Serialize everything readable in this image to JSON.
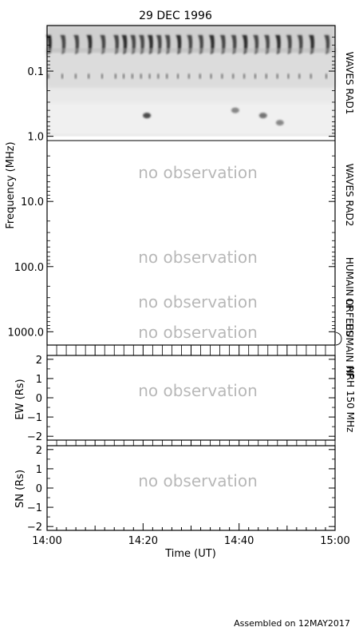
{
  "chart_data": {
    "type": "heatmap",
    "title": "29 DEC 1996",
    "footer": "Assembled on 12MAY2017",
    "xlabel": "Time (UT)",
    "xlim": [
      "14:00",
      "15:00"
    ],
    "x_ticks": [
      "14:00",
      "14:20",
      "14:40",
      "15:00"
    ],
    "panels": [
      {
        "id": "spectrogram",
        "ylabel": "Frequency (MHz)",
        "y_scale": "log",
        "y_reversed": true,
        "ylim": [
          0.02,
          1600
        ],
        "y_ticks": [
          {
            "value": 0.1,
            "label": "0.1"
          },
          {
            "value": 1.0,
            "label": "1.0"
          },
          {
            "value": 10.0,
            "label": "10.0"
          },
          {
            "value": 100.0,
            "label": "100.0"
          },
          {
            "value": 1000.0,
            "label": "1000.0"
          }
        ],
        "instruments": [
          {
            "name": "WAVES RAD1",
            "f_range": [
              0.02,
              1.0
            ],
            "status": "observed"
          },
          {
            "name": "WAVES RAD2",
            "f_range": [
              1.0,
              14.0
            ],
            "status": "no observation"
          },
          {
            "name": "HUMAIN LF",
            "f_range": [
              14.0,
              300.0
            ],
            "status": "no observation"
          },
          {
            "name": "ORFEES",
            "f_range": [
              300.0,
              1000.0
            ],
            "status": "no observation"
          },
          {
            "name": "HUMAIN HF",
            "f_range": [
              1000.0,
              1600.0
            ],
            "status": "no observation"
          }
        ],
        "no_obs_label": "no observation"
      },
      {
        "id": "ew",
        "ylabel": "EW (Rs)",
        "ylim": [
          -2.2,
          2.2
        ],
        "y_ticks": [
          {
            "value": 2,
            "label": "2"
          },
          {
            "value": 1,
            "label": "1"
          },
          {
            "value": 0,
            "label": "0"
          },
          {
            "value": -1,
            "label": "−1"
          },
          {
            "value": -2,
            "label": "−2"
          }
        ],
        "status": "no observation"
      },
      {
        "id": "sn",
        "ylabel": "SN (Rs)",
        "ylim": [
          -2.2,
          2.2
        ],
        "y_ticks": [
          {
            "value": 2,
            "label": "2"
          },
          {
            "value": 1,
            "label": "1"
          },
          {
            "value": 0,
            "label": "0"
          },
          {
            "value": -1,
            "label": "−1"
          },
          {
            "value": -2,
            "label": "−2"
          }
        ],
        "status": "no observation"
      }
    ],
    "nrh_label": "NRH 150 MHz",
    "rad1_bursts_minutes": [
      0.3,
      3.2,
      6.0,
      8.7,
      11.5,
      14.3,
      16.0,
      17.8,
      19.6,
      21.4,
      23.2,
      25.0,
      27.3,
      29.6,
      31.9,
      34.2,
      36.5,
      38.8,
      41.1,
      43.4,
      45.7,
      48.0,
      50.3,
      52.6,
      55.0,
      58.2
    ],
    "rad1_blobs": [
      {
        "t": 20.8,
        "f": 0.48,
        "intensity": 0.9
      },
      {
        "t": 39.2,
        "f": 0.4,
        "intensity": 0.6
      },
      {
        "t": 45.0,
        "f": 0.48,
        "intensity": 0.7
      },
      {
        "t": 48.5,
        "f": 0.62,
        "intensity": 0.6
      }
    ]
  }
}
